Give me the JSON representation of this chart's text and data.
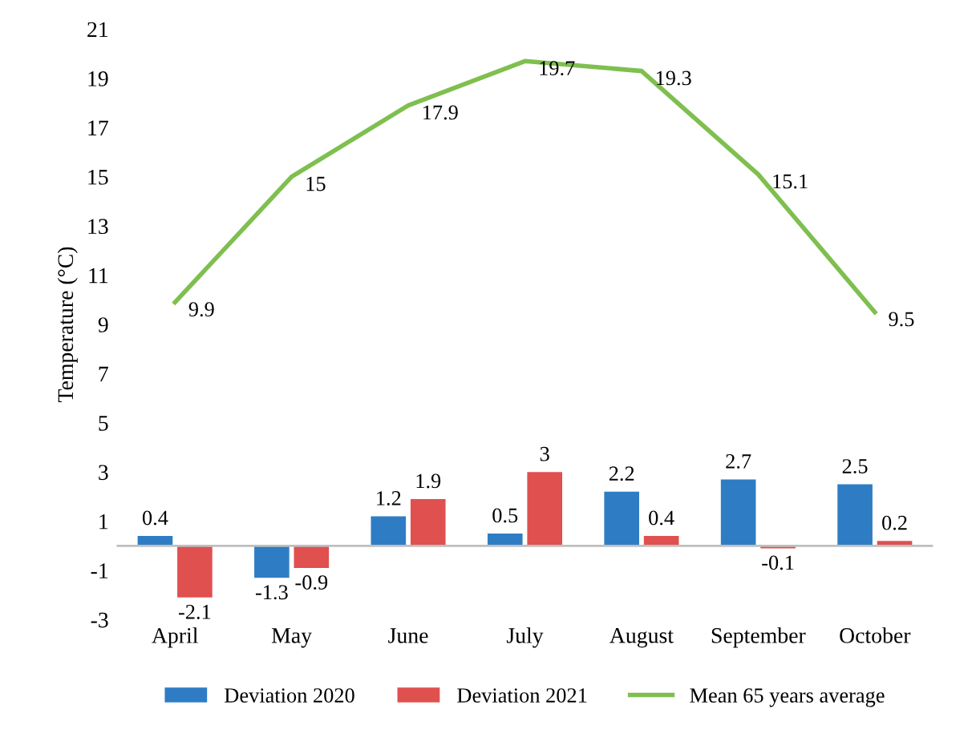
{
  "chart_data": {
    "type": "bar",
    "ylabel": "Temperature (°C)",
    "categories": [
      "April",
      "May",
      "June",
      "July",
      "August",
      "September",
      "October"
    ],
    "series": [
      {
        "name": "Deviation 2020",
        "color": "#2e7dc4",
        "values": [
          0.4,
          -1.3,
          1.2,
          0.5,
          2.2,
          2.7,
          2.5
        ]
      },
      {
        "name": "Deviation 2021",
        "color": "#e0504f",
        "values": [
          -2.1,
          -0.9,
          1.9,
          3,
          0.4,
          -0.1,
          0.2
        ]
      },
      {
        "name": "Mean 65 years average",
        "type": "line",
        "color": "#7fbf4f",
        "values": [
          9.9,
          15,
          17.9,
          19.7,
          19.3,
          15.1,
          9.5
        ]
      }
    ],
    "ylim": [
      -3,
      21
    ],
    "yticks": [
      -3,
      -1,
      1,
      3,
      5,
      7,
      9,
      11,
      13,
      15,
      17,
      19,
      21
    ],
    "ref_lines": [
      {
        "axis": "y",
        "value": 0,
        "color": "#bfbfbf"
      }
    ],
    "data_labels": true,
    "grid": false,
    "legend": "bottom",
    "marker": "none",
    "line_style": "solid"
  }
}
